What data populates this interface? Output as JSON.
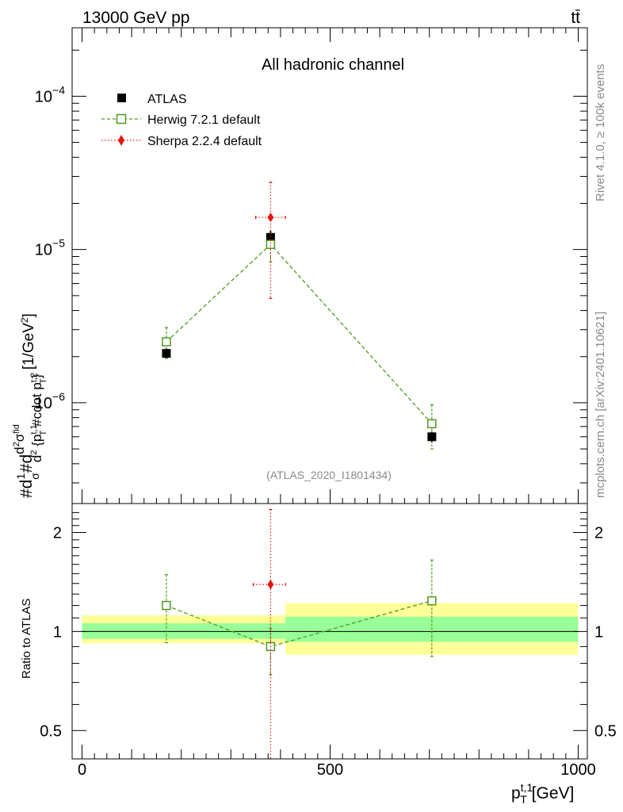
{
  "header": {
    "energy_label": "13000 GeV pp",
    "process_label": "tt̄"
  },
  "side": {
    "rivet_label": "Rivet 4.1.0, ≥ 100k events",
    "mcplots_label": "mcplots.cern.ch [arXiv:2401.10621]"
  },
  "chart_data": {
    "type": "scatter",
    "title": "All hadronic channel",
    "analysis_id": "(ATLAS_2020_I1801434)",
    "ylabel": "#d\\frac{1}{\\sigma}#d\\frac{d^{2}\\sigma^{fid}}{d^{2} {p_{T}^{t,1} #cdot p_{T}^{t,2}} [1/GeV^{2}]",
    "xlabel": "p_T^{t,1} [GeV]",
    "xlim": [
      -20,
      1000
    ],
    "ylim": [
      2.2e-07,
      0.00028
    ],
    "yscale": "log",
    "x_ticks": [
      "0",
      "500",
      "1000"
    ],
    "y_ticks": [
      "10^-6",
      "10^-5",
      "10^-4"
    ],
    "legend": [
      "ATLAS",
      "Herwig 7.2.1 default",
      "Sherpa 2.2.4 default"
    ],
    "series": [
      {
        "name": "ATLAS",
        "color": "#000000",
        "marker": "filled-square",
        "points": [
          {
            "x": 170,
            "xlo": 0,
            "xhi": 340,
            "y": 2.1e-06,
            "ylo": 1.95e-06,
            "yhi": 2.26e-06
          },
          {
            "x": 380,
            "xlo": 340,
            "xhi": 410,
            "y": 1.2e-05,
            "ylo": 1.07e-05,
            "yhi": 1.33e-05
          },
          {
            "x": 705,
            "xlo": 410,
            "xhi": 1000,
            "y": 6e-07,
            "ylo": 5.5e-07,
            "yhi": 6.5e-07
          }
        ]
      },
      {
        "name": "Herwig 7.2.1 default",
        "color": "#4d9a1f",
        "marker": "open-square",
        "line": "dashed",
        "points": [
          {
            "x": 170,
            "y": 2.5e-06,
            "ylo": 1.95e-06,
            "yhi": 3.1e-06
          },
          {
            "x": 380,
            "y": 1.08e-05,
            "ylo": 8.3e-06,
            "yhi": 1.3e-05
          },
          {
            "x": 705,
            "y": 7.3e-07,
            "ylo": 5e-07,
            "yhi": 9.7e-07
          }
        ]
      },
      {
        "name": "Sherpa 2.2.4 default",
        "color": "#e5140e",
        "marker": "filled-diamond",
        "line": "dotted",
        "points": [
          {
            "x": 380,
            "xlo": 350,
            "xhi": 410,
            "y": 1.62e-05,
            "ylo": 4.8e-06,
            "yhi": 2.75e-05
          }
        ]
      }
    ],
    "ratio": {
      "ylabel": "Ratio to ATLAS",
      "ylim": [
        0.41,
        2.45
      ],
      "y_ticks": [
        "0.5",
        "1",
        "2"
      ],
      "bands": [
        {
          "xlo": 0,
          "xhi": 410,
          "stat": [
            0.95,
            1.06
          ],
          "total": [
            0.92,
            1.12
          ]
        },
        {
          "xlo": 410,
          "xhi": 1000,
          "stat": [
            0.93,
            1.11
          ],
          "total": [
            0.85,
            1.22
          ]
        }
      ],
      "series": [
        {
          "name": "Herwig 7.2.1 default",
          "points": [
            {
              "x": 170,
              "y": 1.2,
              "ylo": 0.925,
              "yhi": 1.49
            },
            {
              "x": 380,
              "y": 0.9,
              "ylo": 0.74,
              "yhi": 1.02
            },
            {
              "x": 705,
              "y": 1.24,
              "ylo": 0.84,
              "yhi": 1.65
            }
          ]
        },
        {
          "name": "Sherpa 2.2.4 default",
          "points": [
            {
              "x": 380,
              "xlo": 345,
              "xhi": 410,
              "y": 1.39,
              "ylo": 0.41,
              "yhi": 2.35
            }
          ]
        }
      ]
    }
  }
}
